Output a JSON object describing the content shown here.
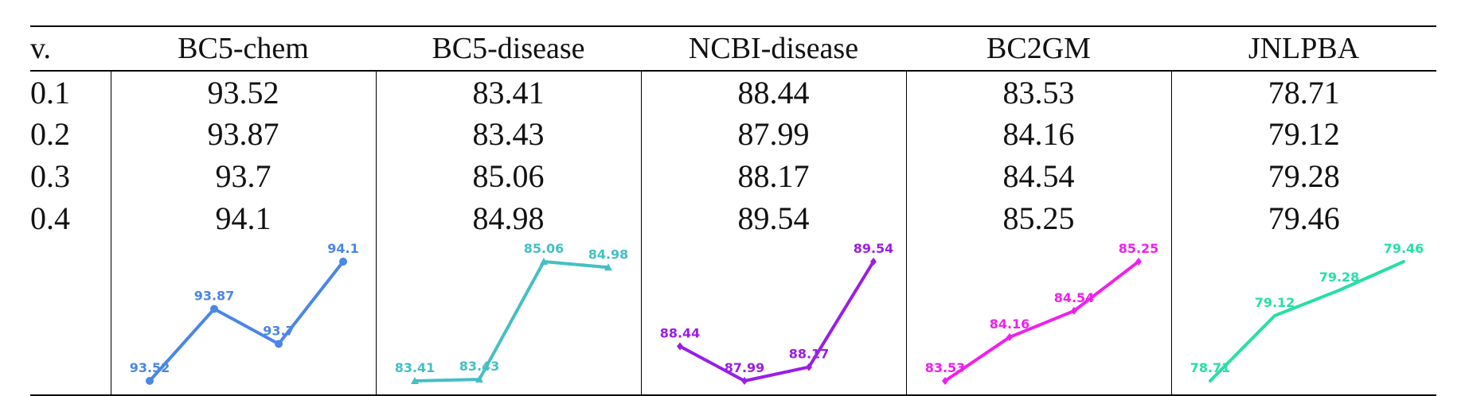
{
  "table": {
    "header_v": "v.",
    "columns": [
      "BC5-chem",
      "BC5-disease",
      "NCBI-disease",
      "BC2GM",
      "JNLPBA"
    ],
    "rows": [
      {
        "v": "0.1",
        "cells": [
          "93.52",
          "83.41",
          "88.44",
          "83.53",
          "78.71"
        ]
      },
      {
        "v": "0.2",
        "cells": [
          "93.87",
          "83.43",
          "87.99",
          "84.16",
          "79.12"
        ]
      },
      {
        "v": "0.3",
        "cells": [
          "93.7",
          "85.06",
          "88.17",
          "84.54",
          "79.28"
        ]
      },
      {
        "v": "0.4",
        "cells": [
          "94.1",
          "84.98",
          "89.54",
          "85.25",
          "79.46"
        ]
      }
    ]
  },
  "chart_data": [
    {
      "type": "line",
      "x": [
        0.1,
        0.2,
        0.3,
        0.4
      ],
      "values": [
        93.52,
        93.87,
        93.7,
        94.1
      ],
      "labels": [
        "93.52",
        "93.87",
        "93.7",
        "94.1"
      ],
      "color": "#4a86e8",
      "marker": "circle"
    },
    {
      "type": "line",
      "x": [
        0.1,
        0.2,
        0.3,
        0.4
      ],
      "values": [
        83.41,
        83.43,
        85.06,
        84.98
      ],
      "labels": [
        "83.41",
        "83.43",
        "85.06",
        "84.98"
      ],
      "color": "#45bfc3",
      "marker": "triangle"
    },
    {
      "type": "line",
      "x": [
        0.1,
        0.2,
        0.3,
        0.4
      ],
      "values": [
        88.44,
        87.99,
        88.17,
        89.54
      ],
      "labels": [
        "88.44",
        "87.99",
        "88.17",
        "89.54"
      ],
      "color": "#9a1ee6",
      "marker": "diamond"
    },
    {
      "type": "line",
      "x": [
        0.1,
        0.2,
        0.3,
        0.4
      ],
      "values": [
        83.53,
        84.16,
        84.54,
        85.25
      ],
      "labels": [
        "83.53",
        "84.16",
        "84.54",
        "85.25"
      ],
      "color": "#f01ff0",
      "marker": "diamond"
    },
    {
      "type": "line",
      "x": [
        0.1,
        0.2,
        0.3,
        0.4
      ],
      "values": [
        78.71,
        79.12,
        79.28,
        79.46
      ],
      "labels": [
        "78.71",
        "79.12",
        "79.28",
        "79.46"
      ],
      "color": "#26dfa6",
      "marker": "none"
    }
  ]
}
